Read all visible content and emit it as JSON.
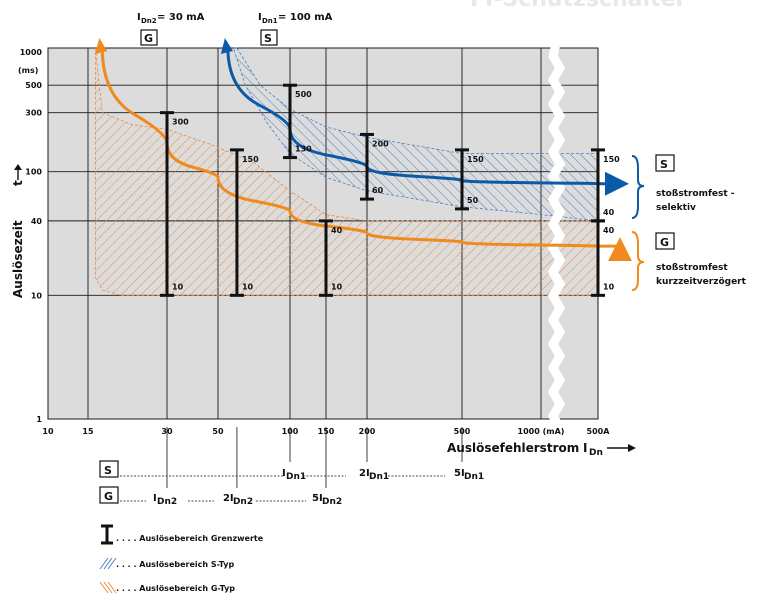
{
  "header": {
    "title_fragment": "FI-Schutzschalter",
    "label_G": "I",
    "label_G_sub": "Dn2",
    "label_G_val": " = 30 mA",
    "label_S": "I",
    "label_S_sub": "Dn1",
    "label_S_val": " = 100 mA",
    "box_G": "G",
    "box_S": "S"
  },
  "colors": {
    "plot_bg": "#dcdcdc",
    "s_blue": "#0b5aa8",
    "s_hatch": "#5a8fd0",
    "g_orange": "#f08a1c",
    "g_hatch": "#f0a060",
    "bar": "#111111"
  },
  "chart_data": {
    "type": "line",
    "title": "",
    "ylabel_main": "Auslösezeit",
    "ylabel_sym": "t",
    "xlabel_main": "Auslösefehlerstrom",
    "xlabel_sym": "I",
    "xlabel_sub": "Dn",
    "yscale": "log",
    "xscale": "log",
    "ylim": [
      1,
      1000
    ],
    "yunit": "(ms)",
    "y_ticks": [
      {
        "value": 1000,
        "label": "1000"
      },
      {
        "value": 500,
        "label": "500"
      },
      {
        "value": 300,
        "label": "300"
      },
      {
        "value": 100,
        "label": "100"
      },
      {
        "value": 40,
        "label": "40"
      },
      {
        "value": 10,
        "label": "10"
      },
      {
        "value": 1,
        "label": "1"
      }
    ],
    "x_ticks": [
      {
        "value": 10,
        "label": "10"
      },
      {
        "value": 15,
        "label": "15"
      },
      {
        "value": 30,
        "label": "30"
      },
      {
        "value": 50,
        "label": "50"
      },
      {
        "value": 100,
        "label": "100"
      },
      {
        "value": 150,
        "label": "150"
      },
      {
        "value": 200,
        "label": "200"
      },
      {
        "value": 500,
        "label": "500"
      },
      {
        "value": 1000,
        "label": "1000 (mA)"
      },
      {
        "value": 1500,
        "label": "500A"
      }
    ],
    "series": [
      {
        "name": "S",
        "side_title": "stoßstromfest -",
        "side_title2": "selektiv",
        "x": [
          55,
          100,
          200,
          500,
          1500
        ],
        "y": [
          1000,
          220,
          110,
          85,
          80
        ]
      },
      {
        "name": "G",
        "side_title": "stoßstromfest",
        "side_title2": "kurzzeitverzögert",
        "x": [
          17,
          30,
          50,
          100,
          200,
          500,
          1500
        ],
        "y": [
          1000,
          170,
          90,
          48,
          32,
          27,
          25
        ]
      }
    ],
    "limit_bars": [
      {
        "x": 30,
        "top": 300,
        "bottom": 10,
        "top_label": "300",
        "bottom_label": "10"
      },
      {
        "x": 60,
        "top": 150,
        "bottom": 10,
        "top_label": "150",
        "bottom_label": "10"
      },
      {
        "x": 150,
        "top": 40,
        "bottom": 10,
        "top_label": "40",
        "bottom_label": "10"
      },
      {
        "x": 100,
        "top": 500,
        "bottom": 130,
        "top_label": "500",
        "bottom_label": "130"
      },
      {
        "x": 200,
        "top": 200,
        "bottom": 60,
        "top_label": "200",
        "bottom_label": "60"
      },
      {
        "x": 500,
        "top": 150,
        "bottom": 50,
        "top_label": "150",
        "bottom_label": "50"
      },
      {
        "x": 1500,
        "top": 150,
        "bottom": 40,
        "top_label": "150",
        "bottom_label": "40"
      },
      {
        "x": 1500,
        "top": 40,
        "bottom": 10,
        "top_label": "40",
        "bottom_label": "10"
      }
    ],
    "multiples_S": [
      {
        "x": 100,
        "pre": "",
        "label": "I",
        "sub": "Dn1"
      },
      {
        "x": 200,
        "pre": "2",
        "label": "I",
        "sub": "Dn1"
      },
      {
        "x": 500,
        "pre": "5",
        "label": "I",
        "sub": "Dn1"
      }
    ],
    "multiples_G": [
      {
        "x": 30,
        "pre": "",
        "label": "I",
        "sub": "Dn2"
      },
      {
        "x": 60,
        "pre": "2",
        "label": "I",
        "sub": "Dn2"
      },
      {
        "x": 150,
        "pre": "5",
        "label": "I",
        "sub": "Dn2"
      }
    ],
    "legend": [
      {
        "kind": "bar",
        "text": ". . . . Auslösebereich Grenzwerte"
      },
      {
        "kind": "hatch-blue",
        "text": ". . . . Auslösebereich S-Typ"
      },
      {
        "kind": "hatch-orange",
        "text": ". . . . Auslösebereich G-Typ"
      }
    ]
  }
}
